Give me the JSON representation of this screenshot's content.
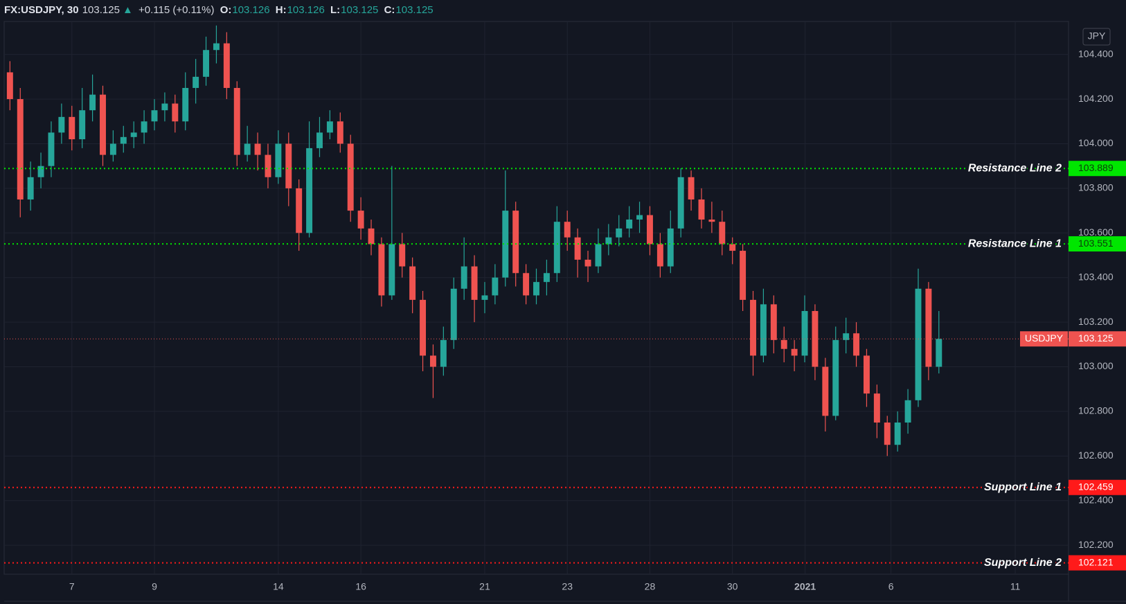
{
  "header": {
    "symbol": "FX:USDJPY, 30",
    "last": "103.125",
    "change": "+0.115 (+0.11%)",
    "ohlc": [
      {
        "label": "O:",
        "value": "103.126"
      },
      {
        "label": "H:",
        "value": "103.126"
      },
      {
        "label": "L:",
        "value": "103.125"
      },
      {
        "label": "C:",
        "value": "103.125"
      }
    ]
  },
  "chart_data": {
    "type": "candlestick",
    "x": [
      -1.5,
      -1.25,
      -1,
      -0.75,
      -0.5,
      -0.25,
      0,
      0.25,
      0.5,
      0.75,
      1,
      1.25,
      1.5,
      1.75,
      2,
      2.25,
      2.5,
      2.75,
      3,
      3.25,
      3.5,
      3.75,
      4,
      4.25,
      4.5,
      4.75,
      5,
      5.25,
      5.5,
      5.75,
      6,
      6.25,
      6.5,
      6.75,
      7,
      7.25,
      7.5,
      7.75,
      8,
      8.25,
      8.5,
      8.75,
      9,
      9.25,
      9.5,
      9.75,
      10,
      10.25,
      10.5,
      10.75,
      11,
      11.25,
      11.5,
      11.75,
      12,
      12.25,
      12.5,
      12.75,
      13,
      13.25,
      13.5,
      13.75,
      14,
      14.25,
      14.5,
      14.75,
      15,
      15.25,
      15.5,
      15.75,
      16,
      16.25,
      16.5,
      16.75,
      17,
      17.25,
      17.5,
      17.75,
      18,
      18.25,
      18.5,
      18.75,
      19,
      19.25,
      19.5,
      19.75,
      20,
      20.25,
      20.5,
      20.75,
      21
    ],
    "open": [
      104.32,
      104.2,
      103.75,
      103.85,
      103.9,
      104.05,
      104.12,
      104.02,
      104.15,
      104.22,
      103.95,
      104.0,
      104.03,
      104.05,
      104.1,
      104.15,
      104.18,
      104.1,
      104.25,
      104.3,
      104.42,
      104.45,
      104.25,
      103.95,
      104.0,
      103.95,
      103.85,
      104.0,
      103.8,
      103.6,
      103.98,
      104.05,
      104.1,
      104.0,
      103.7,
      103.62,
      103.55,
      103.32,
      103.55,
      103.45,
      103.3,
      103.05,
      103.0,
      103.12,
      103.35,
      103.45,
      103.3,
      103.32,
      103.4,
      103.7,
      103.42,
      103.32,
      103.38,
      103.42,
      103.65,
      103.58,
      103.48,
      103.45,
      103.55,
      103.58,
      103.62,
      103.66,
      103.68,
      103.55,
      103.45,
      103.62,
      103.85,
      103.75,
      103.66,
      103.65,
      103.55,
      103.52,
      103.3,
      103.05,
      103.28,
      103.12,
      103.08,
      103.05,
      103.25,
      103.0,
      102.78,
      103.12,
      103.15,
      103.05,
      102.88,
      102.75,
      102.65,
      102.75,
      102.85,
      103.35,
      103.0
    ],
    "high": [
      104.37,
      104.25,
      103.92,
      103.96,
      104.1,
      104.18,
      104.17,
      104.25,
      104.31,
      104.26,
      104.06,
      104.08,
      104.1,
      104.15,
      104.2,
      104.23,
      104.22,
      104.32,
      104.38,
      104.48,
      104.53,
      104.5,
      104.28,
      104.08,
      104.05,
      104.0,
      104.06,
      104.05,
      103.84,
      104.1,
      104.12,
      104.15,
      104.14,
      104.04,
      103.76,
      103.66,
      103.58,
      103.9,
      103.6,
      103.49,
      103.34,
      103.1,
      103.18,
      103.4,
      103.58,
      103.5,
      103.38,
      103.46,
      103.88,
      103.74,
      103.46,
      103.44,
      103.48,
      103.72,
      103.7,
      103.62,
      103.52,
      103.62,
      103.64,
      103.68,
      103.72,
      103.74,
      103.72,
      103.6,
      103.7,
      103.89,
      103.88,
      103.8,
      103.74,
      103.7,
      103.58,
      103.55,
      103.34,
      103.35,
      103.32,
      103.18,
      103.12,
      103.32,
      103.28,
      103.04,
      103.18,
      103.22,
      103.2,
      103.08,
      102.92,
      102.78,
      102.8,
      102.9,
      103.44,
      103.38,
      103.25
    ],
    "low": [
      104.15,
      103.67,
      103.7,
      103.8,
      103.85,
      104.0,
      103.97,
      103.98,
      104.1,
      103.9,
      103.92,
      103.96,
      103.98,
      104.0,
      104.06,
      104.1,
      104.05,
      104.06,
      104.18,
      104.26,
      104.36,
      104.2,
      103.9,
      103.92,
      103.88,
      103.8,
      103.82,
      103.72,
      103.52,
      103.58,
      103.94,
      104.02,
      103.96,
      103.65,
      103.57,
      103.5,
      103.27,
      103.3,
      103.4,
      103.24,
      102.98,
      102.86,
      102.96,
      103.08,
      103.3,
      103.2,
      103.24,
      103.28,
      103.36,
      103.36,
      103.28,
      103.28,
      103.32,
      103.38,
      103.52,
      103.4,
      103.38,
      103.42,
      103.5,
      103.54,
      103.58,
      103.6,
      103.5,
      103.4,
      103.42,
      103.58,
      103.7,
      103.62,
      103.6,
      103.5,
      103.46,
      103.25,
      102.96,
      103.02,
      103.06,
      103.02,
      102.98,
      103.02,
      102.94,
      102.71,
      102.76,
      103.06,
      103.0,
      102.82,
      102.68,
      102.6,
      102.62,
      102.7,
      102.82,
      102.94,
      102.97
    ],
    "close": [
      104.2,
      103.75,
      103.85,
      103.9,
      104.05,
      104.12,
      104.02,
      104.15,
      104.22,
      103.95,
      104.0,
      104.03,
      104.05,
      104.1,
      104.15,
      104.18,
      104.1,
      104.25,
      104.3,
      104.42,
      104.45,
      104.25,
      103.95,
      104.0,
      103.95,
      103.85,
      104.0,
      103.8,
      103.6,
      103.98,
      104.05,
      104.1,
      104.0,
      103.7,
      103.62,
      103.55,
      103.32,
      103.55,
      103.45,
      103.3,
      103.05,
      103.0,
      103.12,
      103.35,
      103.45,
      103.3,
      103.32,
      103.4,
      103.7,
      103.42,
      103.32,
      103.38,
      103.42,
      103.65,
      103.58,
      103.48,
      103.45,
      103.55,
      103.58,
      103.62,
      103.66,
      103.68,
      103.55,
      103.45,
      103.62,
      103.85,
      103.75,
      103.66,
      103.65,
      103.55,
      103.52,
      103.3,
      103.05,
      103.28,
      103.12,
      103.08,
      103.05,
      103.25,
      103.0,
      102.78,
      103.12,
      103.15,
      103.05,
      102.88,
      102.75,
      102.65,
      102.75,
      102.85,
      103.35,
      103.0,
      103.125
    ],
    "up_color": "#26a69a",
    "down_color": "#ef5350",
    "xlim": [
      -1.64,
      24.14
    ],
    "ylim": [
      102.07,
      104.548
    ],
    "xticks": [
      {
        "value": 0,
        "label": "7"
      },
      {
        "value": 2,
        "label": "9"
      },
      {
        "value": 5,
        "label": "14"
      },
      {
        "value": 7,
        "label": "16"
      },
      {
        "value": 10,
        "label": "21"
      },
      {
        "value": 12,
        "label": "23"
      },
      {
        "value": 14,
        "label": "28"
      },
      {
        "value": 16,
        "label": "30"
      },
      {
        "value": 17.76,
        "label": "2021"
      },
      {
        "value": 19.84,
        "label": "6"
      },
      {
        "value": 22.85,
        "label": "11"
      }
    ],
    "yticks": [
      {
        "value": 102.2,
        "label": "102.200"
      },
      {
        "value": 102.4,
        "label": "102.400"
      },
      {
        "value": 102.6,
        "label": "102.600"
      },
      {
        "value": 102.8,
        "label": "102.800"
      },
      {
        "value": 103,
        "label": "103.000"
      },
      {
        "value": 103.2,
        "label": "103.200"
      },
      {
        "value": 103.4,
        "label": "103.400"
      },
      {
        "value": 103.6,
        "label": "103.600"
      },
      {
        "value": 103.8,
        "label": "103.800"
      },
      {
        "value": 104,
        "label": "104.000"
      },
      {
        "value": 104.2,
        "label": "104.200"
      },
      {
        "value": 104.4,
        "label": "104.400"
      }
    ],
    "grid": true,
    "hlines": [
      {
        "name": "Resistance Line 2",
        "value": 103.889,
        "color": "#00e600",
        "label_color": "#0b3d0b"
      },
      {
        "name": "Resistance Line 1",
        "value": 103.551,
        "color": "#00e600",
        "label_color": "#0b3d0b"
      },
      {
        "name": "Support Line 1",
        "value": 102.459,
        "color": "#ff1a1a",
        "label_color": "#ffffff"
      },
      {
        "name": "Support Line 2",
        "value": 102.121,
        "color": "#ff1a1a",
        "label_color": "#ffffff"
      }
    ],
    "price_line": {
      "name": "USDJPY",
      "value": 103.125,
      "color": "#ef5350"
    },
    "currency": "JPY"
  }
}
